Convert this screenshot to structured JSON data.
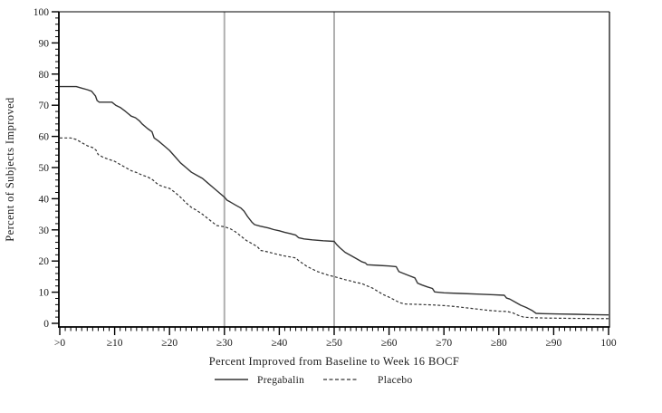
{
  "chart": {
    "y_axis_title": "Percent of Subjects Improved",
    "x_axis_title": "Percent Improved from Baseline to Week 16 BOCF",
    "legend": {
      "pregabalin_label": "Pregabalin",
      "placebo_label": "Placebo"
    }
  },
  "colors": {
    "curve": "#333333",
    "frame": "#000000",
    "reference_line": "#b0b0b0",
    "text": "#1a1a1a"
  },
  "chart_data": {
    "type": "line",
    "title": "",
    "xlabel": "Percent Improved from Baseline to Week 16 BOCF",
    "ylabel": "Percent of Subjects Improved",
    "xlim": [
      0,
      100
    ],
    "ylim": [
      0,
      100
    ],
    "x_tick_values": [
      0,
      10,
      20,
      30,
      40,
      50,
      60,
      70,
      80,
      90,
      100
    ],
    "x_tick_labels": [
      ">0",
      "≥10",
      "≥20",
      "≥30",
      "≥40",
      "≥50",
      "≥60",
      "≥70",
      "≥80",
      "≥90",
      "100"
    ],
    "y_tick_values": [
      0,
      10,
      20,
      30,
      40,
      50,
      60,
      70,
      80,
      90,
      100
    ],
    "y_tick_labels": [
      "0",
      "10",
      "20",
      "30",
      "40",
      "50",
      "60",
      "70",
      "80",
      "90",
      "100"
    ],
    "x_minor_step": 1,
    "y_minor_step": 2,
    "reference_lines_x": [
      30,
      50
    ],
    "grid": "off",
    "legend_position": "bottom",
    "series": [
      {
        "name": "Pregabalin",
        "line": "solid",
        "color": "#333333",
        "points": [
          [
            0,
            76
          ],
          [
            3,
            76
          ],
          [
            4,
            75.5
          ],
          [
            5,
            75
          ],
          [
            5.8,
            74.5
          ],
          [
            6.5,
            73
          ],
          [
            6.8,
            71.5
          ],
          [
            7.2,
            71
          ],
          [
            9.5,
            71
          ],
          [
            10.2,
            70
          ],
          [
            11,
            69.3
          ],
          [
            12,
            68
          ],
          [
            13,
            66.5
          ],
          [
            13.8,
            66
          ],
          [
            14.5,
            65
          ],
          [
            15,
            64
          ],
          [
            16,
            62.5
          ],
          [
            16.8,
            61.5
          ],
          [
            17.2,
            59.5
          ],
          [
            18,
            58.5
          ],
          [
            19,
            57
          ],
          [
            20,
            55.5
          ],
          [
            21,
            53.5
          ],
          [
            22,
            51.5
          ],
          [
            23,
            50
          ],
          [
            24,
            48.5
          ],
          [
            25,
            47.5
          ],
          [
            26,
            46.5
          ],
          [
            27,
            45
          ],
          [
            28,
            43.5
          ],
          [
            29,
            42
          ],
          [
            30,
            40.5
          ],
          [
            30.5,
            39.5
          ],
          [
            31,
            39
          ],
          [
            32,
            38
          ],
          [
            33,
            37
          ],
          [
            33.6,
            36
          ],
          [
            34.2,
            34.3
          ],
          [
            35,
            32.5
          ],
          [
            35.5,
            31.7
          ],
          [
            36.5,
            31.2
          ],
          [
            38,
            30.6
          ],
          [
            39,
            30.1
          ],
          [
            40,
            29.7
          ],
          [
            41,
            29.2
          ],
          [
            42,
            28.8
          ],
          [
            43,
            28.3
          ],
          [
            43.5,
            27.5
          ],
          [
            44.5,
            27.1
          ],
          [
            46,
            26.8
          ],
          [
            48,
            26.5
          ],
          [
            50,
            26.3
          ],
          [
            50.4,
            25.4
          ],
          [
            51,
            24.3
          ],
          [
            52,
            22.8
          ],
          [
            53,
            21.8
          ],
          [
            54,
            20.8
          ],
          [
            55,
            19.8
          ],
          [
            55.7,
            19.4
          ],
          [
            56,
            18.8
          ],
          [
            58,
            18.6
          ],
          [
            60,
            18.4
          ],
          [
            61.3,
            18.2
          ],
          [
            61.8,
            16.6
          ],
          [
            62.5,
            16.1
          ],
          [
            63.5,
            15.4
          ],
          [
            64.7,
            14.6
          ],
          [
            65.2,
            12.9
          ],
          [
            66,
            12.3
          ],
          [
            67,
            11.7
          ],
          [
            67.9,
            11.2
          ],
          [
            68.3,
            10.1
          ],
          [
            70,
            9.8
          ],
          [
            73,
            9.6
          ],
          [
            76,
            9.4
          ],
          [
            79,
            9.2
          ],
          [
            81,
            9
          ],
          [
            81.4,
            8.1
          ],
          [
            82,
            7.8
          ],
          [
            83,
            6.8
          ],
          [
            84,
            5.8
          ],
          [
            85,
            5.1
          ],
          [
            86,
            4.2
          ],
          [
            86.8,
            3.2
          ],
          [
            88,
            3.1
          ],
          [
            91,
            3
          ],
          [
            94,
            2.9
          ],
          [
            97,
            2.8
          ],
          [
            100,
            2.7
          ]
        ]
      },
      {
        "name": "Placebo",
        "line": "dashed",
        "color": "#333333",
        "points": [
          [
            0,
            59.5
          ],
          [
            2,
            59.5
          ],
          [
            3,
            59
          ],
          [
            4,
            58
          ],
          [
            5,
            57
          ],
          [
            6,
            56.4
          ],
          [
            6.6,
            55.6
          ],
          [
            7,
            54.2
          ],
          [
            8,
            53.2
          ],
          [
            9,
            52.6
          ],
          [
            10,
            52
          ],
          [
            11,
            51
          ],
          [
            12,
            50
          ],
          [
            13,
            49
          ],
          [
            14,
            48.4
          ],
          [
            15,
            47.6
          ],
          [
            16,
            47
          ],
          [
            17,
            46
          ],
          [
            17.6,
            45
          ],
          [
            18.2,
            44.3
          ],
          [
            19,
            43.8
          ],
          [
            20,
            43.3
          ],
          [
            21,
            42
          ],
          [
            22,
            40.5
          ],
          [
            23,
            38.7
          ],
          [
            24,
            37.2
          ],
          [
            25,
            36.2
          ],
          [
            26,
            35
          ],
          [
            27,
            33.6
          ],
          [
            28,
            32.2
          ],
          [
            28.6,
            31.4
          ],
          [
            30,
            31
          ],
          [
            31,
            30.4
          ],
          [
            32,
            29.4
          ],
          [
            33,
            28
          ],
          [
            34,
            26.6
          ],
          [
            35,
            25.6
          ],
          [
            36,
            24.6
          ],
          [
            36.6,
            23.4
          ],
          [
            38,
            22.9
          ],
          [
            39,
            22.4
          ],
          [
            40,
            22
          ],
          [
            41,
            21.6
          ],
          [
            42,
            21.3
          ],
          [
            43,
            21
          ],
          [
            43.6,
            20
          ],
          [
            44.2,
            19.3
          ],
          [
            45,
            18.3
          ],
          [
            46,
            17.4
          ],
          [
            47,
            16.6
          ],
          [
            48,
            16
          ],
          [
            49,
            15.4
          ],
          [
            50,
            15
          ],
          [
            51,
            14.5
          ],
          [
            52,
            14
          ],
          [
            53,
            13.6
          ],
          [
            54,
            13.1
          ],
          [
            55,
            12.8
          ],
          [
            56,
            12
          ],
          [
            57,
            11.3
          ],
          [
            58,
            10.2
          ],
          [
            59,
            9.2
          ],
          [
            60,
            8.4
          ],
          [
            61,
            7.5
          ],
          [
            62,
            6.6
          ],
          [
            63,
            6.2
          ],
          [
            65,
            6.1
          ],
          [
            68,
            5.9
          ],
          [
            70,
            5.7
          ],
          [
            72,
            5.4
          ],
          [
            74,
            5
          ],
          [
            76,
            4.6
          ],
          [
            78,
            4.2
          ],
          [
            80,
            3.9
          ],
          [
            81.5,
            3.8
          ],
          [
            82.5,
            3.4
          ],
          [
            83.5,
            2.6
          ],
          [
            84.5,
            2
          ],
          [
            86,
            1.8
          ],
          [
            89,
            1.7
          ],
          [
            93,
            1.6
          ],
          [
            100,
            1.5
          ]
        ]
      }
    ]
  }
}
